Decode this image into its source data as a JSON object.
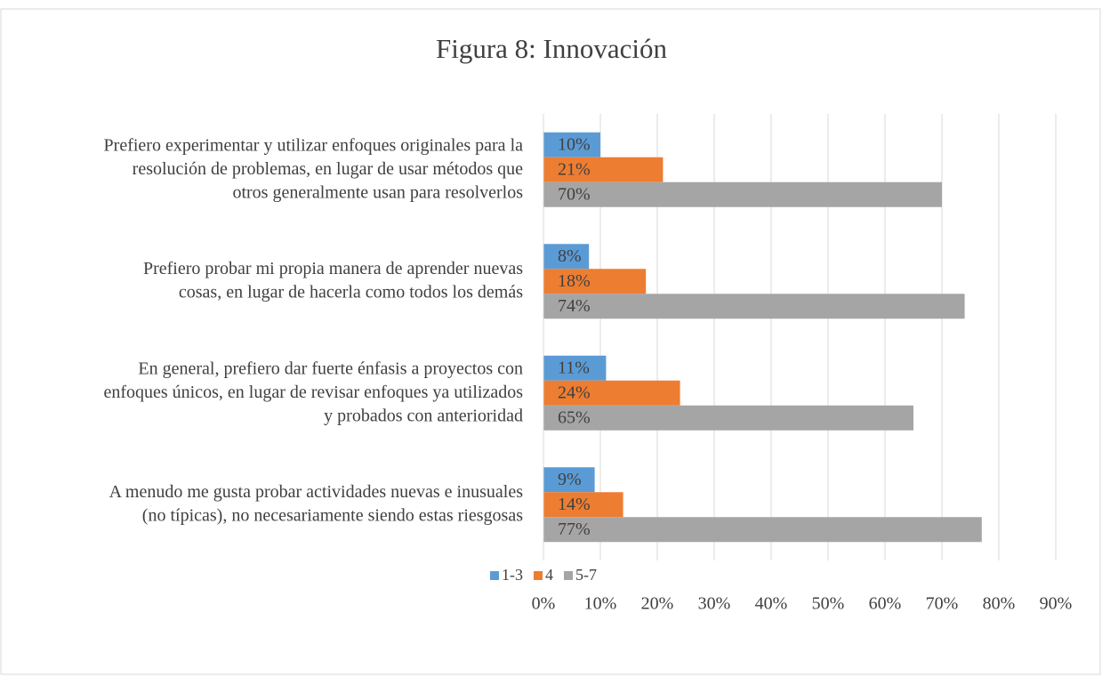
{
  "chart_data": {
    "type": "hbar",
    "title": "Figura 8: Innovación",
    "categories": [
      "Prefiero experimentar y utilizar enfoques originales para la\nresolución de problemas, en lugar de usar métodos que\notros generalmente usan para resolverlos",
      "Prefiero probar mi propia manera de aprender nuevas\ncosas, en lugar de hacerla como todos los demás",
      "En general, prefiero dar fuerte énfasis a proyectos con\nenfoques únicos, en lugar de revisar enfoques ya utilizados\ny probados con anterioridad",
      "A menudo me gusta probar actividades nuevas e inusuales\n(no típicas), no necesariamente siendo estas riesgosas"
    ],
    "series": [
      {
        "name": "1-3",
        "color": "#5b9bd5",
        "values": [
          10,
          8,
          11,
          9
        ],
        "value_labels": [
          "10%",
          "8%",
          "11%",
          "9%"
        ]
      },
      {
        "name": "4",
        "color": "#ed7d31",
        "values": [
          21,
          18,
          24,
          14
        ],
        "value_labels": [
          "21%",
          "18%",
          "24%",
          "14%"
        ]
      },
      {
        "name": "5-7",
        "color": "#a5a5a5",
        "values": [
          70,
          74,
          65,
          77
        ],
        "value_labels": [
          "70%",
          "74%",
          "65%",
          "77%"
        ]
      }
    ],
    "xlim": [
      0,
      90
    ],
    "xticks": [
      {
        "value": 0,
        "label": "0%"
      },
      {
        "value": 10,
        "label": "10%"
      },
      {
        "value": 20,
        "label": "20%"
      },
      {
        "value": 30,
        "label": "30%"
      },
      {
        "value": 40,
        "label": "40%"
      },
      {
        "value": 50,
        "label": "50%"
      },
      {
        "value": 60,
        "label": "60%"
      },
      {
        "value": 70,
        "label": "70%"
      },
      {
        "value": 80,
        "label": "80%"
      },
      {
        "value": 90,
        "label": "90%"
      }
    ],
    "grid": true,
    "legend": "bottom"
  }
}
